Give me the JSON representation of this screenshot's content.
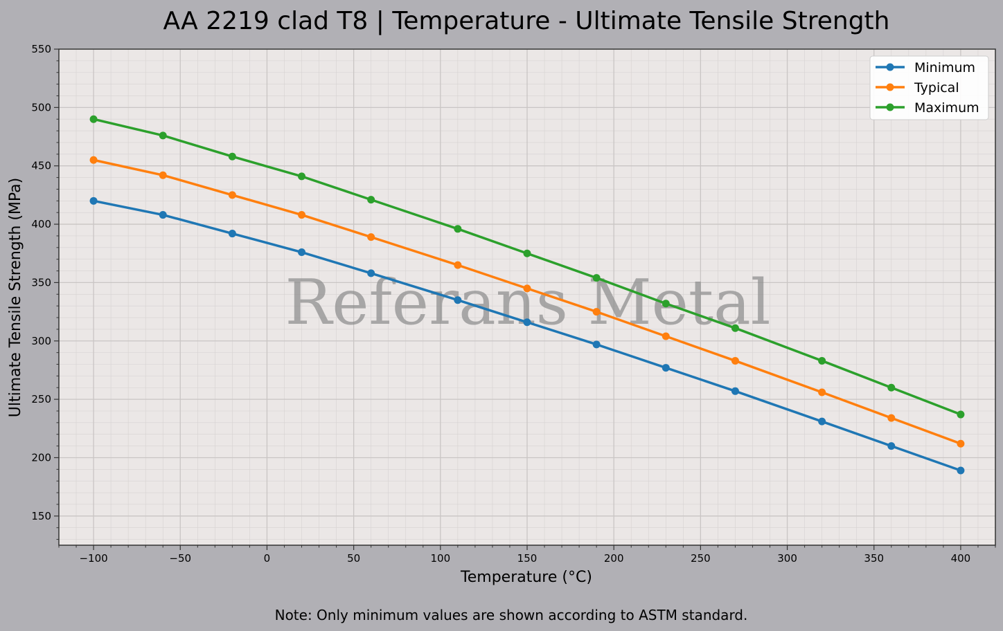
{
  "chart_data": {
    "type": "line",
    "title": "AA 2219 clad T8 | Temperature - Ultimate Tensile Strength",
    "xlabel": "Temperature (°C)",
    "ylabel": "Ultimate Tensile Strength (MPa)",
    "xlim": [
      -120,
      420
    ],
    "ylim": [
      125,
      550
    ],
    "xticks": [
      -100,
      -50,
      0,
      50,
      100,
      150,
      200,
      250,
      300,
      350,
      400
    ],
    "xtick_labels": [
      "−100",
      "−50",
      "0",
      "50",
      "100",
      "150",
      "200",
      "250",
      "300",
      "350",
      "400"
    ],
    "yticks": [
      150,
      200,
      250,
      300,
      350,
      400,
      450,
      500,
      550
    ],
    "grid": true,
    "legend": "top-right",
    "x": [
      -100,
      -60,
      -20,
      20,
      60,
      110,
      150,
      190,
      230,
      270,
      320,
      360,
      400
    ],
    "series": [
      {
        "name": "Minimum",
        "color": "#1f77b4",
        "values": [
          420,
          408,
          392,
          376,
          358,
          335,
          316,
          297,
          277,
          257,
          231,
          210,
          189
        ]
      },
      {
        "name": "Typical",
        "color": "#ff7f0e",
        "values": [
          455,
          442,
          425,
          408,
          389,
          365,
          345,
          325,
          304,
          283,
          256,
          234,
          212
        ]
      },
      {
        "name": "Maximum",
        "color": "#2ca02c",
        "values": [
          490,
          476,
          458,
          441,
          421,
          396,
          375,
          354,
          332,
          311,
          283,
          260,
          237
        ]
      }
    ],
    "watermark": "Referans Metal",
    "note": "Note: Only minimum values are shown according to ASTM standard."
  }
}
